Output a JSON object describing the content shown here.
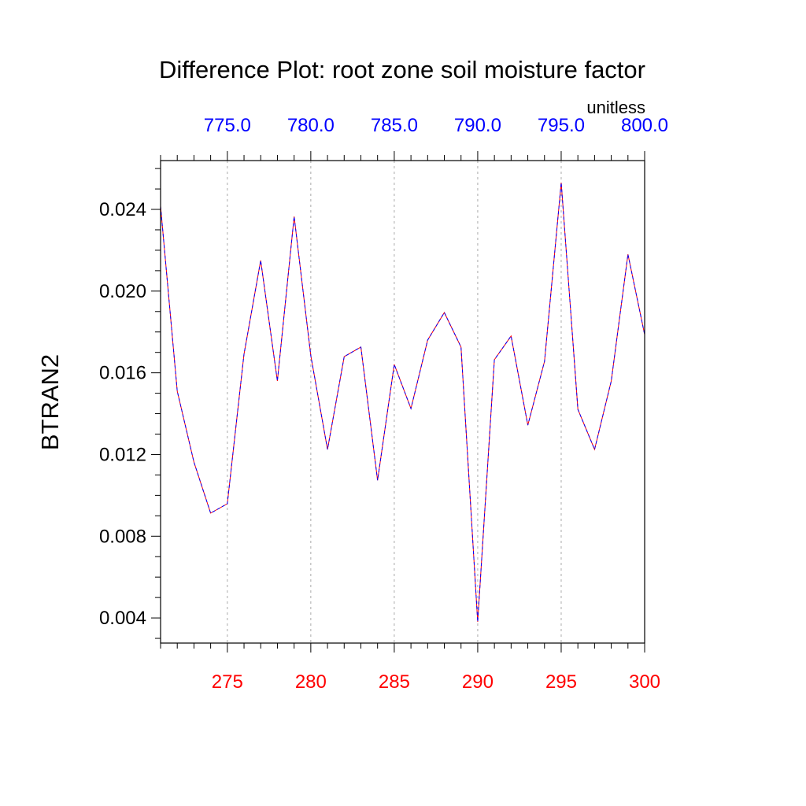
{
  "chart_data": {
    "type": "line",
    "title": "Difference Plot: root zone soil moisture factor",
    "units_label": "unitless",
    "ylabel": "BTRAN2",
    "xlabel": "",
    "xlim": [
      271,
      300
    ],
    "ylim": [
      0.00277,
      0.02639
    ],
    "x_ticks": [
      275,
      280,
      285,
      290,
      295,
      300
    ],
    "x_tick_labels": [
      "275",
      "280",
      "285",
      "290",
      "295",
      "300"
    ],
    "top_x_tick_labels": [
      "775.0",
      "780.0",
      "785.0",
      "790.0",
      "795.0",
      "800.0"
    ],
    "y_ticks": [
      0.004,
      0.008,
      0.012,
      0.016,
      0.02,
      0.024
    ],
    "y_tick_labels": [
      "0.004",
      "0.008",
      "0.012",
      "0.016",
      "0.020",
      "0.024"
    ],
    "grid": "vertical dashed at major x ticks",
    "colors": {
      "bottom_axis_labels": "#ff0000",
      "top_axis_labels": "#0000ff",
      "series_1": "#ff0000",
      "series_2": "#0000ff"
    },
    "x": [
      271,
      272,
      273,
      274,
      275,
      276,
      277,
      278,
      279,
      280,
      281,
      282,
      283,
      284,
      285,
      286,
      287,
      288,
      289,
      290,
      291,
      292,
      293,
      294,
      295,
      296,
      297,
      298,
      299,
      300
    ],
    "series": [
      {
        "style": "solid",
        "color": "#ff0000",
        "values": [
          0.02415,
          0.0151,
          0.01163,
          0.00913,
          0.00959,
          0.01691,
          0.0215,
          0.0156,
          0.02365,
          0.01683,
          0.01225,
          0.01679,
          0.01726,
          0.01074,
          0.01641,
          0.01425,
          0.0176,
          0.01895,
          0.01726,
          0.00381,
          0.01664,
          0.0178,
          0.01344,
          0.01656,
          0.02531,
          0.01421,
          0.01225,
          0.0156,
          0.0218,
          0.01787
        ]
      },
      {
        "style": "dashed",
        "color": "#0000ff",
        "values": [
          0.02415,
          0.0151,
          0.01163,
          0.00913,
          0.00959,
          0.01691,
          0.0215,
          0.0156,
          0.02365,
          0.01683,
          0.01225,
          0.01679,
          0.01726,
          0.01074,
          0.01641,
          0.01425,
          0.0176,
          0.01895,
          0.01726,
          0.00381,
          0.01664,
          0.0178,
          0.01344,
          0.01656,
          0.02531,
          0.01421,
          0.01225,
          0.0156,
          0.0218,
          0.01787
        ]
      }
    ]
  }
}
